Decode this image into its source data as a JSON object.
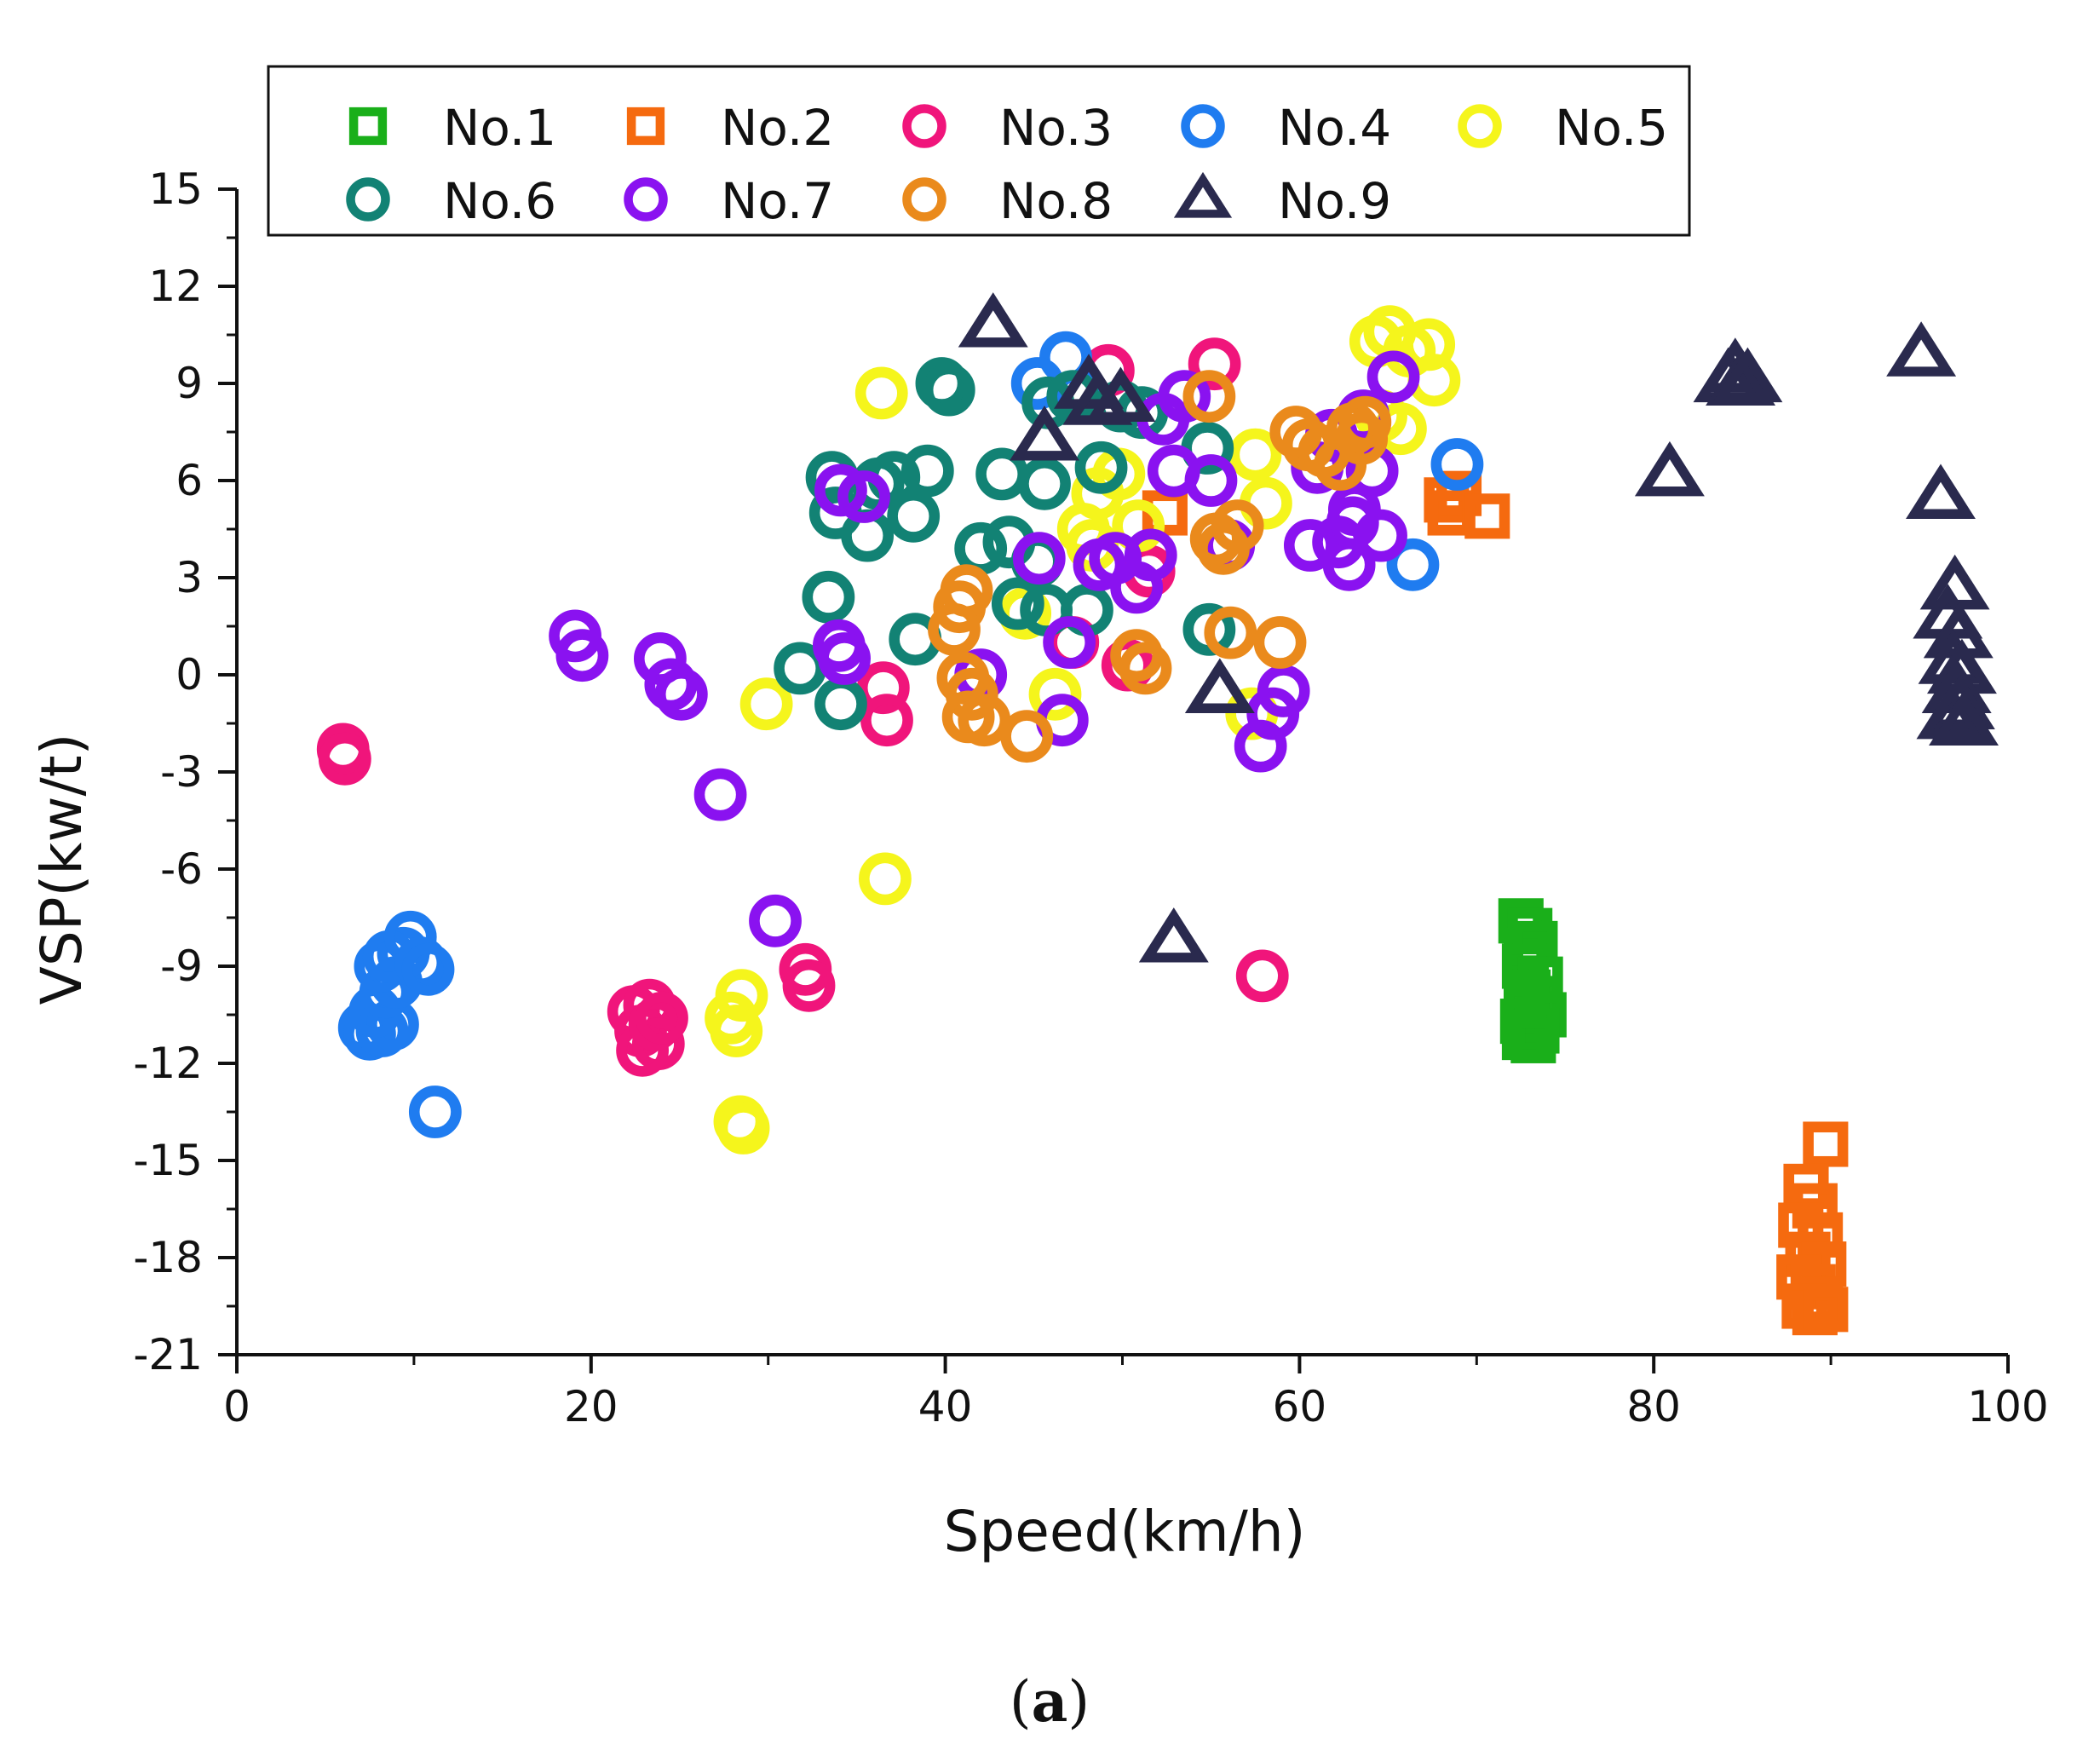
{
  "chart_data": {
    "type": "scatter",
    "title": "",
    "caption": {
      "open": "(",
      "letter": "a",
      "close": ")"
    },
    "xlabel": "Speed(km/h)",
    "ylabel": "VSP(kw/t)",
    "xlim": [
      0,
      100
    ],
    "ylim": [
      -21,
      15
    ],
    "xticks": [
      0,
      20,
      40,
      60,
      80,
      100
    ],
    "yticks": [
      -21,
      -18,
      -15,
      -12,
      -9,
      -6,
      -3,
      0,
      3,
      6,
      9,
      12,
      15
    ],
    "legend_position": "top",
    "series": [
      {
        "name": "No.1",
        "marker": "square",
        "color": "#1aaf1a",
        "points": [
          [
            72.5,
            -7.6
          ],
          [
            73.0,
            -7.9
          ],
          [
            72.8,
            -8.5
          ],
          [
            73.3,
            -8.3
          ],
          [
            72.7,
            -9.0
          ],
          [
            73.6,
            -9.4
          ],
          [
            72.9,
            -9.8
          ],
          [
            73.5,
            -10.0
          ],
          [
            72.8,
            -10.3
          ],
          [
            73.8,
            -10.5
          ],
          [
            72.6,
            -10.7
          ],
          [
            73.4,
            -11.0
          ],
          [
            72.7,
            -11.2
          ],
          [
            73.2,
            -11.3
          ]
        ]
      },
      {
        "name": "No.2",
        "marker": "square",
        "color": "#f56a0f",
        "points": [
          [
            68.3,
            5.4
          ],
          [
            69.0,
            5.6
          ],
          [
            68.5,
            5.0
          ],
          [
            70.6,
            4.9
          ],
          [
            52.4,
            5.0
          ],
          [
            89.7,
            -14.5
          ],
          [
            88.6,
            -15.8
          ],
          [
            89.1,
            -16.4
          ],
          [
            88.3,
            -17.0
          ],
          [
            89.4,
            -17.3
          ],
          [
            88.7,
            -17.9
          ],
          [
            89.6,
            -18.2
          ],
          [
            88.2,
            -18.6
          ],
          [
            89.0,
            -18.9
          ],
          [
            89.4,
            -19.3
          ],
          [
            88.5,
            -19.5
          ],
          [
            89.1,
            -19.7
          ],
          [
            89.7,
            -19.6
          ]
        ]
      },
      {
        "name": "No.3",
        "marker": "circle",
        "color": "#f0157b",
        "points": [
          [
            6.0,
            -2.3
          ],
          [
            6.1,
            -2.6
          ],
          [
            22.4,
            -10.4
          ],
          [
            22.8,
            -11.0
          ],
          [
            23.3,
            -10.2
          ],
          [
            23.8,
            -11.4
          ],
          [
            22.9,
            -11.6
          ],
          [
            23.6,
            -10.8
          ],
          [
            24.0,
            -10.6
          ],
          [
            32.1,
            -9.1
          ],
          [
            32.3,
            -9.6
          ],
          [
            36.5,
            -0.4
          ],
          [
            36.7,
            -1.4
          ],
          [
            49.2,
            9.4
          ],
          [
            55.2,
            9.6
          ],
          [
            51.5,
            3.2
          ],
          [
            47.2,
            1.0
          ],
          [
            50.3,
            0.3
          ],
          [
            57.9,
            -9.3
          ]
        ]
      },
      {
        "name": "No.4",
        "marker": "circle",
        "color": "#1f7cf0",
        "points": [
          [
            7.2,
            -10.9
          ],
          [
            7.5,
            -11.1
          ],
          [
            8.2,
            -11.0
          ],
          [
            8.8,
            -10.8
          ],
          [
            7.8,
            -10.4
          ],
          [
            8.4,
            -9.8
          ],
          [
            9.0,
            -9.5
          ],
          [
            8.1,
            -9.0
          ],
          [
            9.4,
            -8.6
          ],
          [
            8.6,
            -8.7
          ],
          [
            9.8,
            -8.1
          ],
          [
            10.4,
            -8.9
          ],
          [
            10.8,
            -9.1
          ],
          [
            11.2,
            -13.5
          ],
          [
            46.8,
            9.8
          ],
          [
            45.2,
            9.0
          ],
          [
            47.5,
            8.6
          ],
          [
            68.9,
            6.5
          ],
          [
            66.4,
            3.4
          ]
        ]
      },
      {
        "name": "No.5",
        "marker": "circle",
        "color": "#f5f51c",
        "points": [
          [
            28.4,
            -13.8
          ],
          [
            28.6,
            -14.0
          ],
          [
            27.9,
            -10.6
          ],
          [
            28.2,
            -11.0
          ],
          [
            28.5,
            -9.9
          ],
          [
            29.9,
            -0.9
          ],
          [
            36.6,
            -6.3
          ],
          [
            36.4,
            8.7
          ],
          [
            47.8,
            4.5
          ],
          [
            48.6,
            5.6
          ],
          [
            49.8,
            6.2
          ],
          [
            50.9,
            4.6
          ],
          [
            48.3,
            4.0
          ],
          [
            57.5,
            6.8
          ],
          [
            58.1,
            5.3
          ],
          [
            64.3,
            10.3
          ],
          [
            65.1,
            10.6
          ],
          [
            66.2,
            10.0
          ],
          [
            67.3,
            10.2
          ],
          [
            67.6,
            9.1
          ],
          [
            64.6,
            8.0
          ],
          [
            65.7,
            7.6
          ],
          [
            46.2,
            -0.6
          ],
          [
            57.3,
            -1.2
          ],
          [
            44.5,
            1.9
          ]
        ]
      },
      {
        "name": "No.6",
        "marker": "circle",
        "color": "#128274",
        "points": [
          [
            33.6,
            6.1
          ],
          [
            33.8,
            5.0
          ],
          [
            33.4,
            2.4
          ],
          [
            31.8,
            0.2
          ],
          [
            34.1,
            -0.9
          ],
          [
            35.6,
            4.3
          ],
          [
            36.2,
            5.9
          ],
          [
            37.1,
            6.1
          ],
          [
            38.2,
            4.9
          ],
          [
            38.3,
            1.1
          ],
          [
            39.0,
            6.3
          ],
          [
            39.8,
            9.0
          ],
          [
            40.2,
            8.8
          ],
          [
            43.2,
            6.2
          ],
          [
            42.0,
            3.9
          ],
          [
            43.6,
            4.1
          ],
          [
            44.1,
            2.2
          ],
          [
            45.2,
            3.5
          ],
          [
            45.7,
            2.0
          ],
          [
            48.0,
            2.0
          ],
          [
            45.8,
            8.4
          ],
          [
            47.2,
            8.6
          ],
          [
            49.9,
            8.3
          ],
          [
            51.1,
            8.1
          ],
          [
            48.8,
            6.4
          ],
          [
            45.6,
            5.9
          ],
          [
            54.8,
            7.0
          ],
          [
            54.9,
            1.4
          ]
        ]
      },
      {
        "name": "No.7",
        "marker": "circle",
        "color": "#8a12f0",
        "points": [
          [
            19.1,
            1.2
          ],
          [
            19.5,
            0.6
          ],
          [
            23.9,
            0.5
          ],
          [
            24.5,
            -0.3
          ],
          [
            25.1,
            -0.6
          ],
          [
            27.3,
            -3.7
          ],
          [
            30.4,
            -7.6
          ],
          [
            34.1,
            5.7
          ],
          [
            35.4,
            5.5
          ],
          [
            34.0,
            0.9
          ],
          [
            34.3,
            0.5
          ],
          [
            42.0,
            0.0
          ],
          [
            45.3,
            3.6
          ],
          [
            47.0,
            1.0
          ],
          [
            46.6,
            -1.4
          ],
          [
            48.7,
            3.4
          ],
          [
            49.6,
            3.6
          ],
          [
            50.8,
            2.7
          ],
          [
            51.6,
            3.7
          ],
          [
            52.3,
            7.9
          ],
          [
            52.9,
            6.3
          ],
          [
            53.5,
            8.6
          ],
          [
            55.0,
            6.0
          ],
          [
            56.0,
            4.0
          ],
          [
            57.8,
            -2.2
          ],
          [
            58.5,
            -1.2
          ],
          [
            59.1,
            -0.5
          ],
          [
            61.0,
            6.4
          ],
          [
            61.8,
            7.4
          ],
          [
            62.2,
            4.1
          ],
          [
            62.8,
            3.4
          ],
          [
            63.1,
            5.1
          ],
          [
            63.6,
            8.0
          ],
          [
            64.1,
            6.3
          ],
          [
            64.6,
            4.3
          ],
          [
            65.3,
            9.2
          ],
          [
            63.0,
            4.7
          ],
          [
            60.6,
            4.0
          ]
        ]
      },
      {
        "name": "No.8",
        "marker": "circle",
        "color": "#ea8a1c",
        "points": [
          [
            40.8,
            2.1
          ],
          [
            41.2,
            2.6
          ],
          [
            40.5,
            1.4
          ],
          [
            41.0,
            -0.1
          ],
          [
            41.5,
            -0.6
          ],
          [
            41.3,
            -1.3
          ],
          [
            42.2,
            -1.4
          ],
          [
            44.6,
            -1.9
          ],
          [
            50.8,
            0.6
          ],
          [
            51.3,
            0.2
          ],
          [
            54.9,
            8.6
          ],
          [
            55.3,
            4.2
          ],
          [
            55.7,
            3.9
          ],
          [
            56.5,
            4.6
          ],
          [
            56.1,
            1.3
          ],
          [
            58.9,
            1.0
          ],
          [
            59.8,
            7.5
          ],
          [
            60.5,
            7.1
          ],
          [
            61.4,
            6.9
          ],
          [
            62.3,
            6.5
          ],
          [
            63.0,
            7.6
          ],
          [
            63.7,
            7.8
          ],
          [
            63.5,
            7.3
          ]
        ]
      },
      {
        "name": "No.9",
        "marker": "triangle",
        "color": "#2a2a4e",
        "points": [
          [
            42.7,
            10.8
          ],
          [
            45.6,
            7.3
          ],
          [
            48.1,
            8.9
          ],
          [
            48.6,
            8.4
          ],
          [
            49.9,
            8.5
          ],
          [
            52.9,
            -8.2
          ],
          [
            55.5,
            -0.5
          ],
          [
            80.9,
            6.2
          ],
          [
            84.2,
            9.1
          ],
          [
            84.6,
            9.4
          ],
          [
            84.9,
            9.0
          ],
          [
            85.3,
            9.1
          ],
          [
            95.1,
            9.9
          ],
          [
            96.2,
            5.5
          ],
          [
            97.0,
            2.7
          ],
          [
            96.6,
            1.8
          ],
          [
            97.2,
            1.2
          ],
          [
            96.9,
            0.4
          ],
          [
            97.4,
            0.1
          ],
          [
            97.1,
            -0.5
          ],
          [
            97.3,
            -1.0
          ],
          [
            96.8,
            -1.3
          ],
          [
            97.5,
            -1.5
          ]
        ]
      }
    ]
  }
}
